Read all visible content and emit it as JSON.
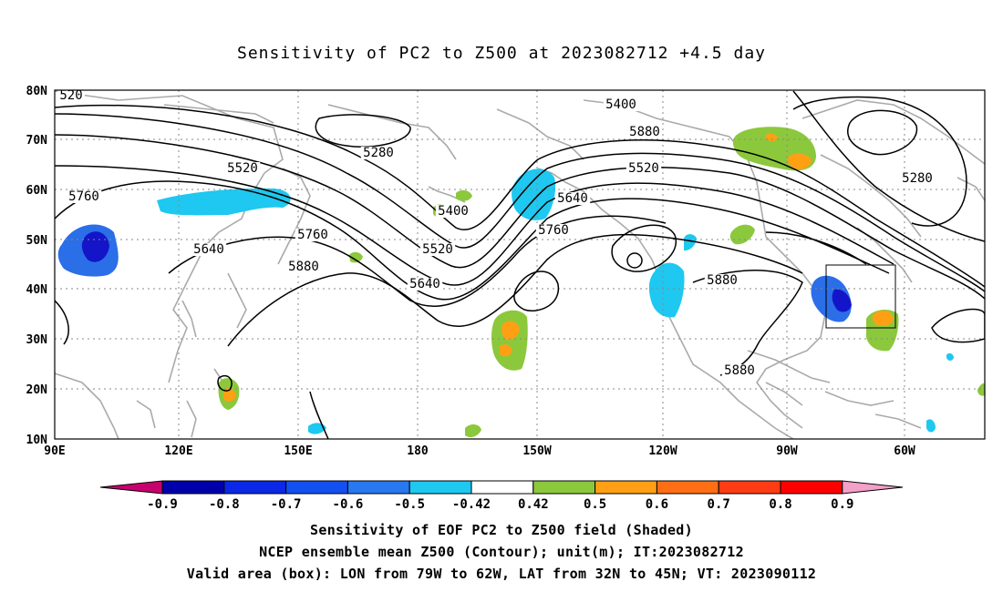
{
  "title": "Sensitivity of PC2 to Z500 at 2023082712 +4.5 day",
  "map": {
    "lat_ticks": [
      "80N",
      "70N",
      "60N",
      "50N",
      "40N",
      "30N",
      "20N",
      "10N"
    ],
    "lon_ticks": [
      "90E",
      "120E",
      "150E",
      "180",
      "150W",
      "120W",
      "90W",
      "60W"
    ],
    "contour_labels": [
      "520",
      "5280",
      "5400",
      "5520",
      "5640",
      "5760",
      "5400",
      "5520",
      "5640",
      "5760",
      "5880",
      "5880",
      "5520",
      "5640",
      "5760",
      "5880",
      "5880",
      "5280"
    ],
    "colors": {
      "dark_blue": "#1414c8",
      "blue": "#2a6ee8",
      "cyan": "#1ec8f0",
      "green": "#8cc83c",
      "orange": "#ffa014",
      "land": "#aaaaaa"
    }
  },
  "colorbar": {
    "labels": [
      "-0.9",
      "-0.8",
      "-0.7",
      "-0.6",
      "-0.5",
      "-0.42",
      "0.42",
      "0.5",
      "0.6",
      "0.7",
      "0.8",
      "0.9"
    ],
    "colors": [
      "#c8006e",
      "#0000aa",
      "#0a28e6",
      "#1450f0",
      "#2878f0",
      "#1ec8f0",
      "#ffffff",
      "#8cc83c",
      "#ffa014",
      "#ff6e14",
      "#ff3c14",
      "#ff0000",
      "#f4a0c8"
    ]
  },
  "footer": {
    "line1": "Sensitivity of EOF PC2 to Z500 field (Shaded)",
    "line2": "NCEP ensemble mean Z500 (Contour); unit(m); IT:2023082712",
    "line3": "Valid area (box): LON from 79W to 62W, LAT from 32N to 45N; VT: 2023090112"
  }
}
